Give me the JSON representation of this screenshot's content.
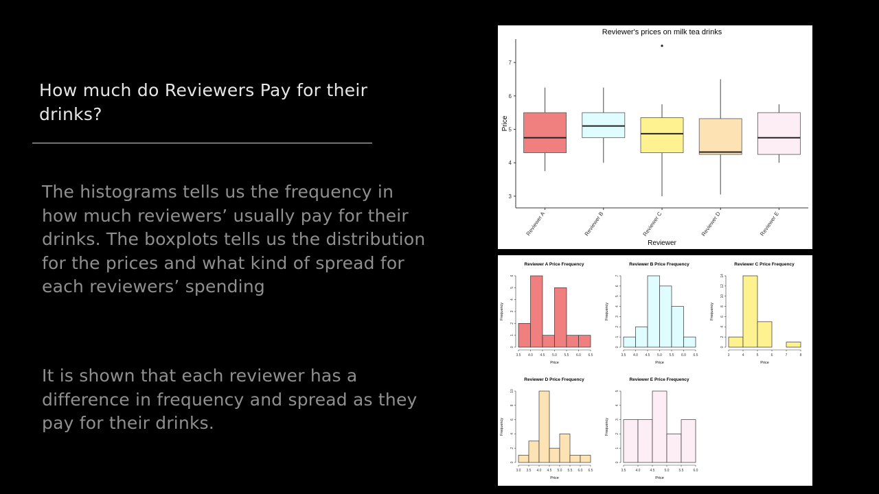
{
  "slide": {
    "title": "How much do Reviewers Pay for their drinks?",
    "paragraph1": "The histograms tells us the frequency in how much reviewers’ usually pay for their drinks. The boxplots tells us the distribution for the prices and what kind of spread for each reviewers’ spending",
    "paragraph2": "It is shown that each reviewer has a difference in frequency and spread as they pay for their drinks."
  },
  "chart_data": [
    {
      "type": "boxplot",
      "title": "Reviewer's prices on milk tea drinks",
      "xlabel": "Reviewer",
      "ylabel": "Price",
      "ylim": [
        2.65,
        7.7
      ],
      "yticks": [
        3,
        4,
        5,
        6,
        7
      ],
      "categories": [
        "Reviewer A",
        "Reviewer B",
        "Reviewer C",
        "Reviewer D",
        "Reviewer E"
      ],
      "boxes": [
        {
          "min": 3.75,
          "q1": 4.3,
          "median": 4.75,
          "q3": 5.5,
          "max": 6.25,
          "outliers": [],
          "color": "#f08080"
        },
        {
          "min": 4.0,
          "q1": 4.75,
          "median": 5.1,
          "q3": 5.5,
          "max": 6.25,
          "outliers": [],
          "color": "#dffcfe"
        },
        {
          "min": 3.0,
          "q1": 4.3,
          "median": 4.87,
          "q3": 5.35,
          "max": 5.75,
          "outliers": [
            7.5
          ],
          "color": "#fdf28f"
        },
        {
          "min": 3.05,
          "q1": 4.25,
          "median": 4.32,
          "q3": 5.32,
          "max": 6.5,
          "outliers": [],
          "color": "#fde3b3"
        },
        {
          "min": 4.0,
          "q1": 4.25,
          "median": 4.75,
          "q3": 5.5,
          "max": 5.75,
          "outliers": [],
          "color": "#fdeef5"
        }
      ]
    },
    {
      "type": "histogram",
      "title": "Reviewer A Price Frequency",
      "xlabel": "Price",
      "ylabel": "Frequency",
      "color": "#f08080",
      "breaks": [
        3.5,
        4.0,
        4.5,
        5.0,
        5.5,
        6.0,
        6.5
      ],
      "counts": [
        2,
        6,
        1,
        5,
        1,
        1
      ],
      "xticks": [
        "3.5",
        "4.0",
        "4.5",
        "5.0",
        "5.5",
        "6.0",
        "6.5"
      ],
      "yticks": [
        0,
        1,
        2,
        3,
        4,
        5,
        6
      ],
      "ymax": 6
    },
    {
      "type": "histogram",
      "title": "Reviewer B Price Frequency",
      "xlabel": "Price",
      "ylabel": "Frequency",
      "color": "#dffcfe",
      "breaks": [
        3.5,
        4.0,
        4.5,
        5.0,
        5.5,
        6.0,
        6.5
      ],
      "counts": [
        1,
        2,
        7,
        6,
        4,
        1
      ],
      "xticks": [
        "3.5",
        "4.0",
        "4.5",
        "5.0",
        "5.5",
        "6.0",
        "6.5"
      ],
      "yticks": [
        0,
        1,
        2,
        3,
        4,
        5,
        6,
        7
      ],
      "ymax": 7
    },
    {
      "type": "histogram",
      "title": "Reviewer C Price Frequency",
      "xlabel": "Price",
      "ylabel": "Frequency",
      "color": "#fdf28f",
      "breaks": [
        3,
        4,
        5,
        6,
        7,
        8
      ],
      "counts": [
        2,
        14,
        5,
        0,
        1
      ],
      "xticks": [
        "3",
        "4",
        "5",
        "6",
        "7",
        "8"
      ],
      "yticks": [
        0,
        2,
        4,
        6,
        8,
        10,
        12,
        14
      ],
      "ymax": 14
    },
    {
      "type": "histogram",
      "title": "Reviewer D Price Frequency",
      "xlabel": "Price",
      "ylabel": "Frequency",
      "color": "#fde3b3",
      "breaks": [
        3.0,
        3.5,
        4.0,
        4.5,
        5.0,
        5.5,
        6.0,
        6.5
      ],
      "counts": [
        1,
        3,
        10,
        2,
        4,
        1,
        1
      ],
      "xticks": [
        "3.0",
        "3.5",
        "4.0",
        "4.5",
        "5.0",
        "5.5",
        "6.0",
        "6.5"
      ],
      "yticks": [
        0,
        2,
        4,
        6,
        8,
        10
      ],
      "ymax": 10
    },
    {
      "type": "histogram",
      "title": "Reviewer E Price Frequency",
      "xlabel": "Price",
      "ylabel": "Frequency",
      "color": "#fdeef5",
      "breaks": [
        3.5,
        4.0,
        4.5,
        5.0,
        5.5,
        6.0
      ],
      "counts": [
        3,
        3,
        5,
        2,
        3
      ],
      "xticks": [
        "3.5",
        "4.0",
        "4.5",
        "5.0",
        "5.5",
        "6.0"
      ],
      "yticks": [
        0,
        1,
        2,
        3,
        4,
        5
      ],
      "ymax": 5
    }
  ]
}
